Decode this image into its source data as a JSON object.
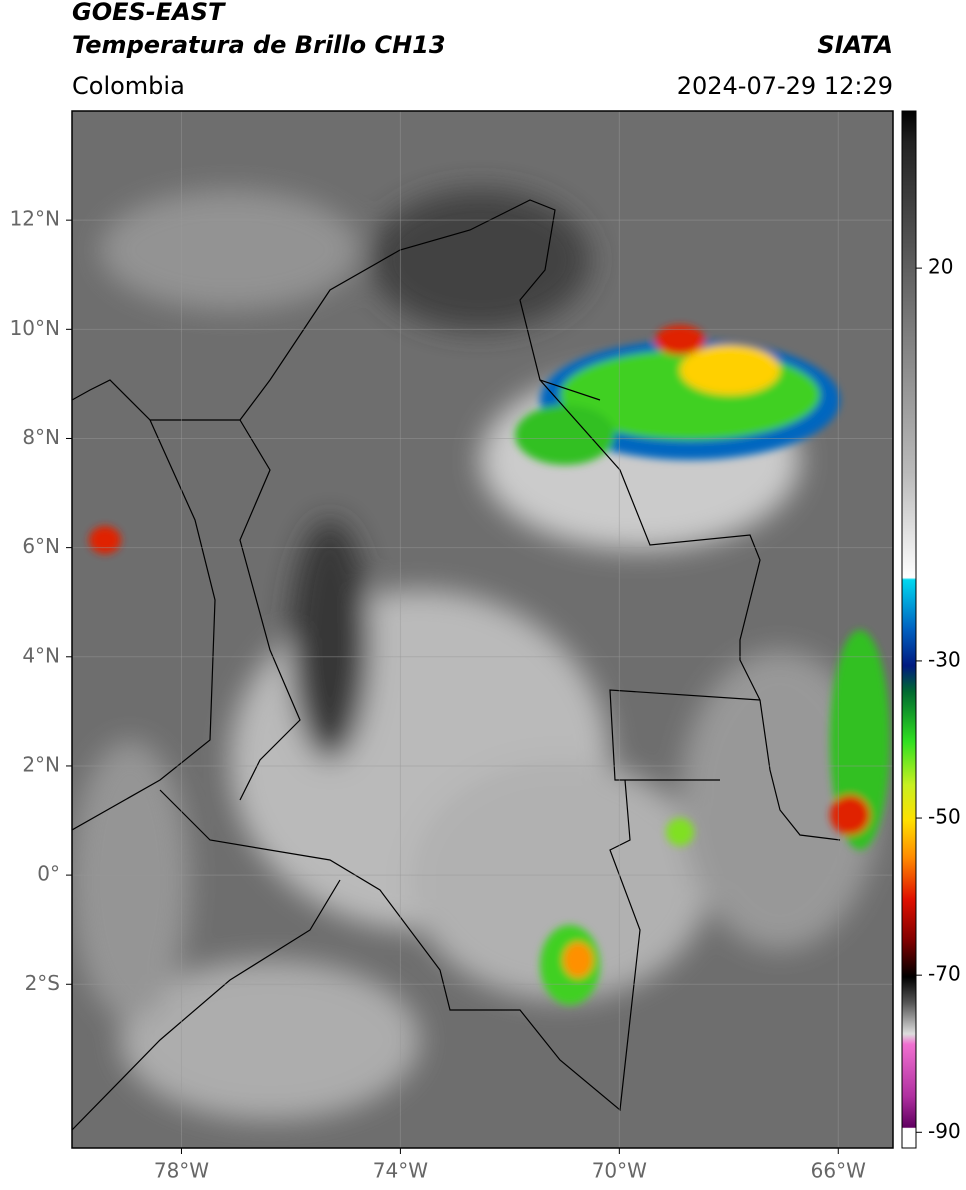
{
  "chart_data": {
    "type": "map",
    "title": "GOES-EAST",
    "subtitle": "Temperatura de Brillo CH13",
    "source": "SIATA",
    "region": "Colombia",
    "datetime": "2024-07-29 12:29",
    "xlim": [
      -80,
      -65
    ],
    "ylim": [
      -5,
      14
    ],
    "xticks": [
      {
        "value": -78,
        "label": "78°W"
      },
      {
        "value": -74,
        "label": "74°W"
      },
      {
        "value": -70,
        "label": "70°W"
      },
      {
        "value": -66,
        "label": "66°W"
      }
    ],
    "yticks": [
      {
        "value": -2,
        "label": "2°S"
      },
      {
        "value": 0,
        "label": "0°"
      },
      {
        "value": 2,
        "label": "2°N"
      },
      {
        "value": 4,
        "label": "4°N"
      },
      {
        "value": 6,
        "label": "6°N"
      },
      {
        "value": 8,
        "label": "8°N"
      },
      {
        "value": 10,
        "label": "10°N"
      },
      {
        "value": 12,
        "label": "12°N"
      }
    ],
    "grid": true,
    "colorbar": {
      "lim": [
        -92,
        40
      ],
      "ticks": [
        20,
        -30,
        -50,
        -70,
        -90
      ]
    }
  }
}
